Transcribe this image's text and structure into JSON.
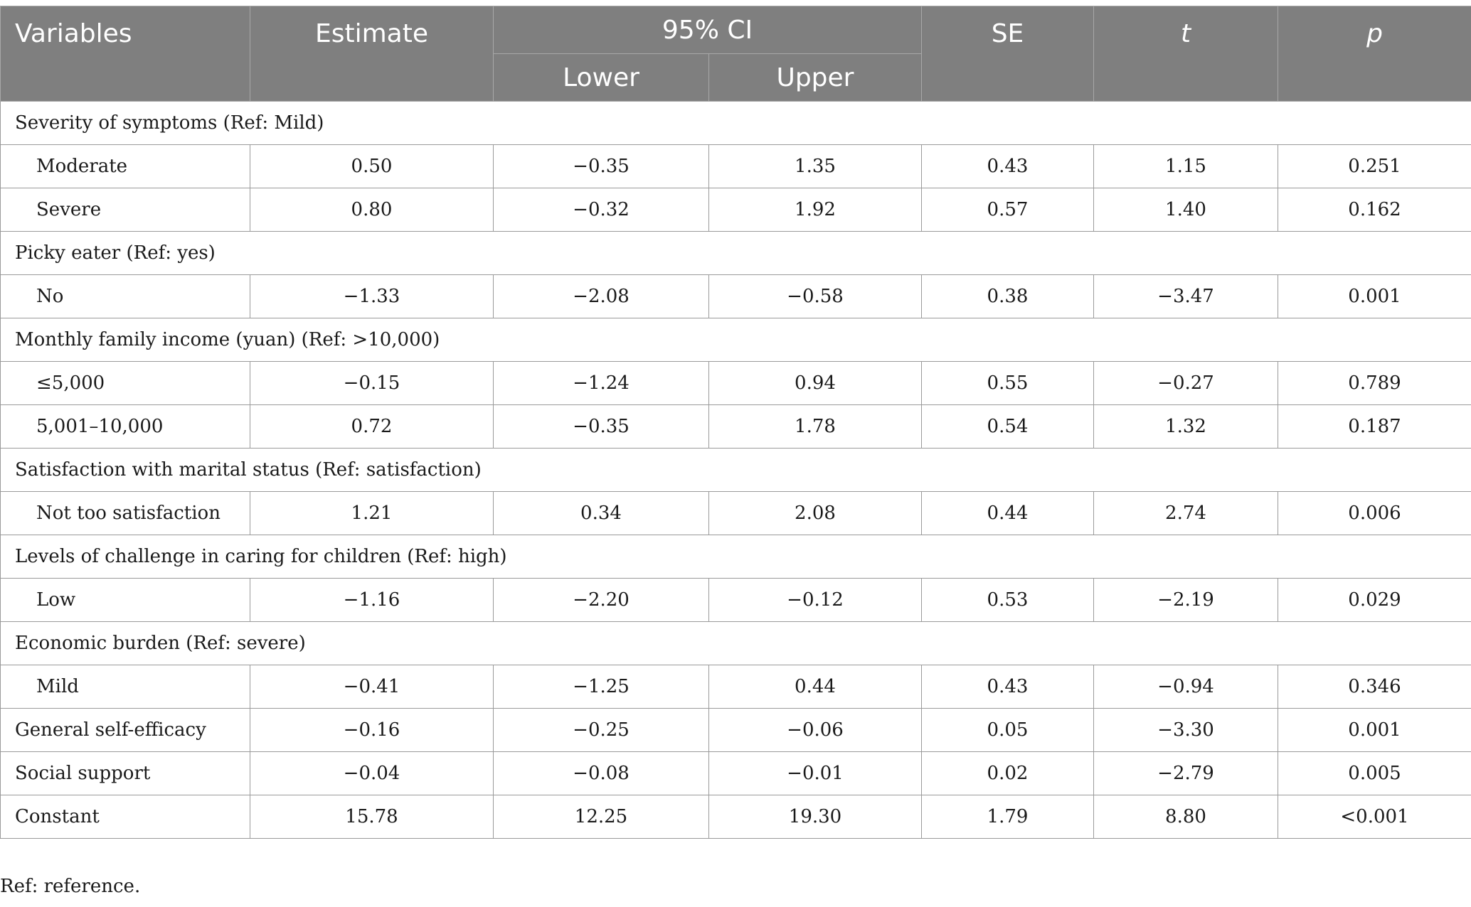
{
  "headers": {
    "variables": "Variables",
    "estimate": "Estimate",
    "ci": "95% CI",
    "lower": "Lower",
    "upper": "Upper",
    "se": "SE",
    "t": "t",
    "p": "p"
  },
  "rows": [
    {
      "type": "group",
      "label": "Severity of symptoms (Ref: Mild)"
    },
    {
      "type": "sub",
      "label": "Moderate",
      "estimate": "0.50",
      "lower": "−0.35",
      "upper": "1.35",
      "se": "0.43",
      "t": "1.15",
      "p": "0.251"
    },
    {
      "type": "sub",
      "label": "Severe",
      "estimate": "0.80",
      "lower": "−0.32",
      "upper": "1.92",
      "se": "0.57",
      "t": "1.40",
      "p": "0.162"
    },
    {
      "type": "group",
      "label": "Picky eater (Ref: yes)"
    },
    {
      "type": "sub",
      "label": "No",
      "estimate": "−1.33",
      "lower": "−2.08",
      "upper": "−0.58",
      "se": "0.38",
      "t": "−3.47",
      "p": "0.001"
    },
    {
      "type": "group",
      "label": "Monthly family income (yuan) (Ref: >10,000)"
    },
    {
      "type": "sub",
      "label": "≤5,000",
      "estimate": "−0.15",
      "lower": "−1.24",
      "upper": "0.94",
      "se": "0.55",
      "t": "−0.27",
      "p": "0.789"
    },
    {
      "type": "sub",
      "label": "5,001–10,000",
      "estimate": "0.72",
      "lower": "−0.35",
      "upper": "1.78",
      "se": "0.54",
      "t": "1.32",
      "p": "0.187"
    },
    {
      "type": "group",
      "label": "Satisfaction with marital status (Ref: satisfaction)"
    },
    {
      "type": "sub",
      "label": "Not too satisfaction",
      "estimate": "1.21",
      "lower": "0.34",
      "upper": "2.08",
      "se": "0.44",
      "t": "2.74",
      "p": "0.006"
    },
    {
      "type": "group",
      "label": "Levels of challenge in caring for children (Ref: high)"
    },
    {
      "type": "sub",
      "label": "Low",
      "estimate": "−1.16",
      "lower": "−2.20",
      "upper": "−0.12",
      "se": "0.53",
      "t": "−2.19",
      "p": "0.029"
    },
    {
      "type": "group",
      "label": "Economic burden (Ref: severe)"
    },
    {
      "type": "sub",
      "label": "Mild",
      "estimate": "−0.41",
      "lower": "−1.25",
      "upper": "0.44",
      "se": "0.43",
      "t": "−0.94",
      "p": "0.346"
    },
    {
      "type": "top",
      "label": "General self-efficacy",
      "estimate": "−0.16",
      "lower": "−0.25",
      "upper": "−0.06",
      "se": "0.05",
      "t": "−3.30",
      "p": "0.001"
    },
    {
      "type": "top",
      "label": "Social support",
      "estimate": "−0.04",
      "lower": "−0.08",
      "upper": "−0.01",
      "se": "0.02",
      "t": "−2.79",
      "p": "0.005"
    },
    {
      "type": "top",
      "label": "Constant",
      "estimate": "15.78",
      "lower": "12.25",
      "upper": "19.30",
      "se": "1.79",
      "t": "8.80",
      "p": "<0.001"
    }
  ],
  "footnote": "Ref: reference."
}
